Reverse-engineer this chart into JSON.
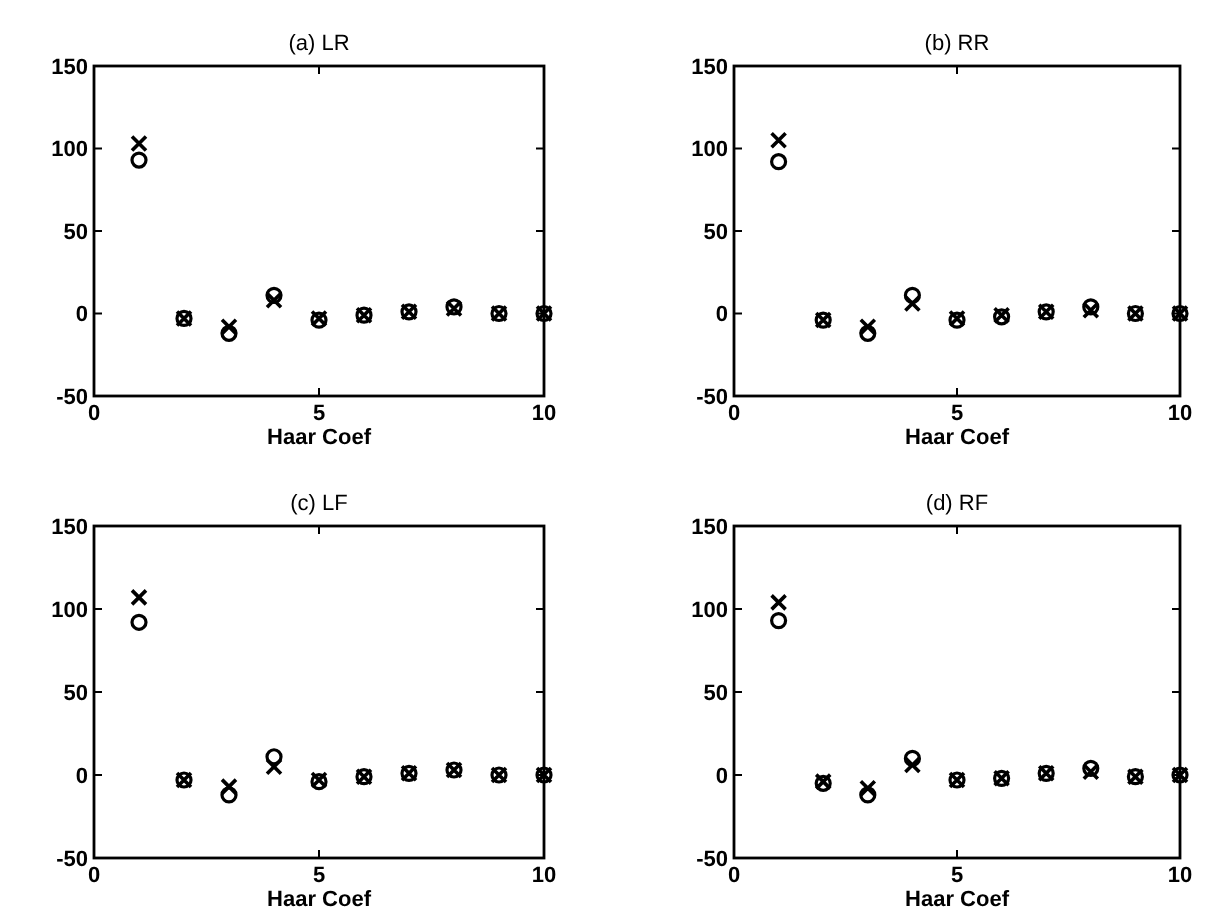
{
  "chart_data": [
    {
      "type": "scatter",
      "title": "(a) LR",
      "xlabel": "Haar Coef",
      "x": [
        1,
        2,
        3,
        4,
        5,
        6,
        7,
        8,
        9,
        10
      ],
      "xlim": [
        0,
        10
      ],
      "xticks": [
        0,
        5,
        10
      ],
      "ylim": [
        -50,
        150
      ],
      "yticks": [
        -50,
        0,
        50,
        100,
        150
      ],
      "series": [
        {
          "marker": "circle",
          "color": "#000000",
          "values": [
            93,
            -3,
            -12,
            11,
            -4,
            -1,
            1,
            4,
            0,
            0
          ]
        },
        {
          "marker": "cross",
          "color": "#000000",
          "values": [
            103,
            -3,
            -8,
            8,
            -3,
            -1,
            1,
            3,
            0,
            0
          ]
        }
      ]
    },
    {
      "type": "scatter",
      "title": "(b) RR",
      "xlabel": "Haar Coef",
      "x": [
        1,
        2,
        3,
        4,
        5,
        6,
        7,
        8,
        9,
        10
      ],
      "xlim": [
        0,
        10
      ],
      "xticks": [
        0,
        5,
        10
      ],
      "ylim": [
        -50,
        150
      ],
      "yticks": [
        -50,
        0,
        50,
        100,
        150
      ],
      "series": [
        {
          "marker": "circle",
          "color": "#000000",
          "values": [
            92,
            -4,
            -12,
            11,
            -4,
            -2,
            1,
            4,
            0,
            0
          ]
        },
        {
          "marker": "cross",
          "color": "#000000",
          "values": [
            105,
            -4,
            -8,
            6,
            -3,
            -1,
            1,
            2,
            0,
            0
          ]
        }
      ]
    },
    {
      "type": "scatter",
      "title": "(c) LF",
      "xlabel": "Haar Coef",
      "x": [
        1,
        2,
        3,
        4,
        5,
        6,
        7,
        8,
        9,
        10
      ],
      "xlim": [
        0,
        10
      ],
      "xticks": [
        0,
        5,
        10
      ],
      "ylim": [
        -50,
        150
      ],
      "yticks": [
        -50,
        0,
        50,
        100,
        150
      ],
      "series": [
        {
          "marker": "circle",
          "color": "#000000",
          "values": [
            92,
            -3,
            -12,
            11,
            -4,
            -1,
            1,
            3,
            0,
            0
          ]
        },
        {
          "marker": "cross",
          "color": "#000000",
          "values": [
            107,
            -3,
            -7,
            5,
            -3,
            -1,
            1,
            3,
            0,
            0
          ]
        }
      ]
    },
    {
      "type": "scatter",
      "title": "(d) RF",
      "xlabel": "Haar Coef",
      "x": [
        1,
        2,
        3,
        4,
        5,
        6,
        7,
        8,
        9,
        10
      ],
      "xlim": [
        0,
        10
      ],
      "xticks": [
        0,
        5,
        10
      ],
      "ylim": [
        -50,
        150
      ],
      "yticks": [
        -50,
        0,
        50,
        100,
        150
      ],
      "series": [
        {
          "marker": "circle",
          "color": "#000000",
          "values": [
            93,
            -5,
            -12,
            10,
            -3,
            -2,
            1,
            4,
            -1,
            0
          ]
        },
        {
          "marker": "cross",
          "color": "#000000",
          "values": [
            104,
            -4,
            -8,
            6,
            -3,
            -2,
            1,
            2,
            -1,
            0
          ]
        }
      ]
    }
  ]
}
